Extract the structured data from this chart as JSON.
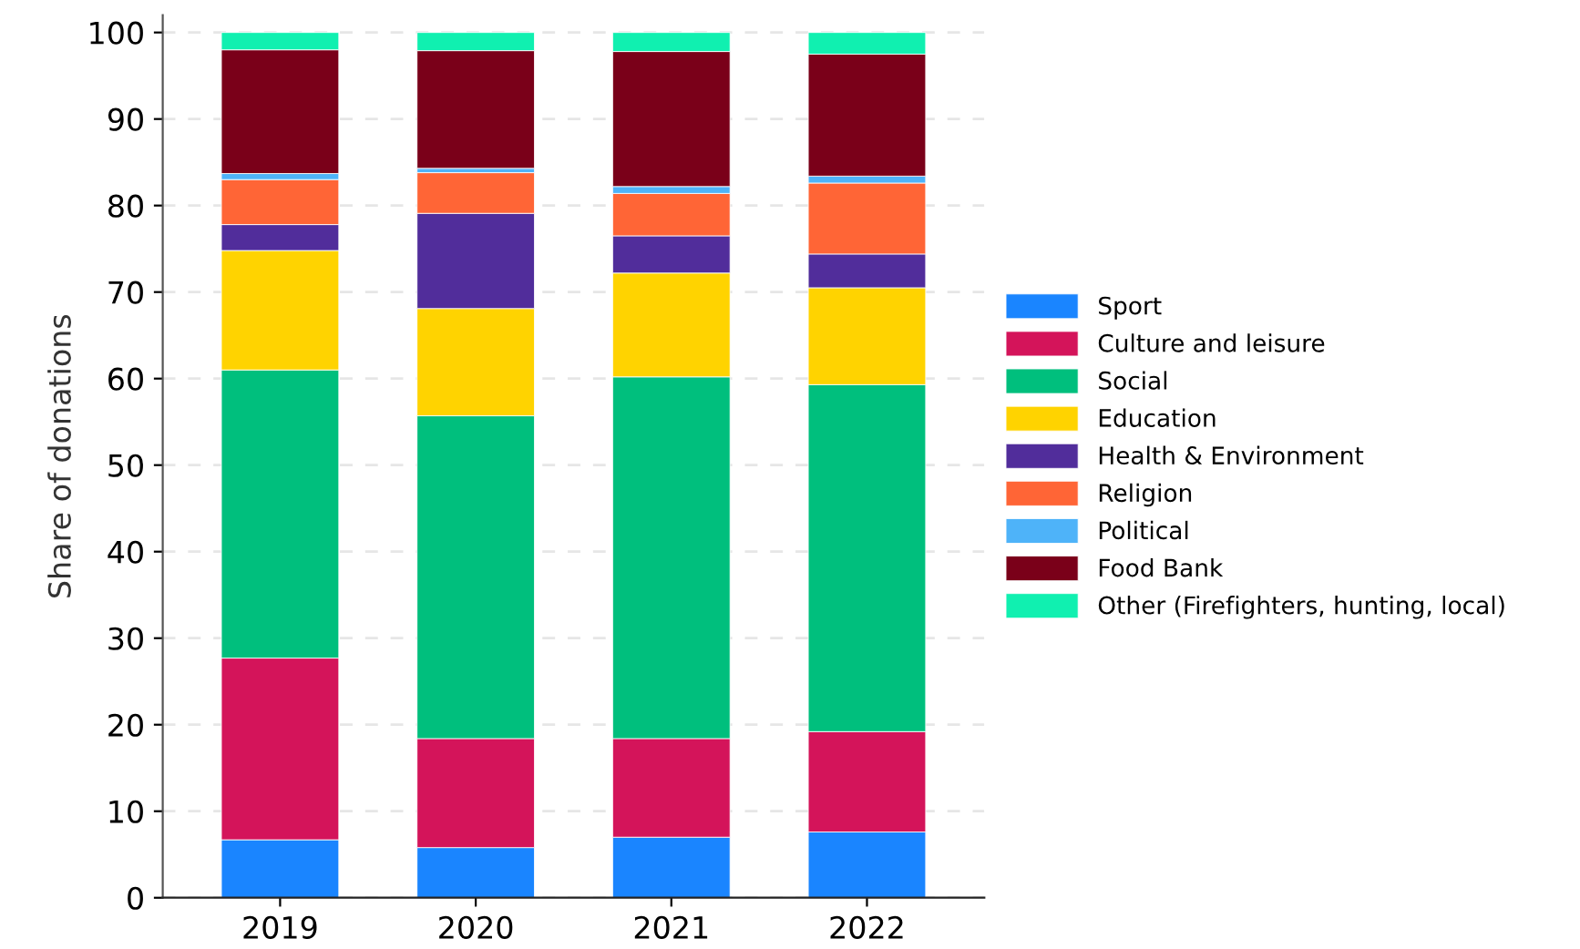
{
  "chart_data": {
    "type": "bar",
    "stacked": true,
    "ylabel": "Share of donations",
    "categories": [
      "2019",
      "2020",
      "2021",
      "2022"
    ],
    "series": [
      {
        "name": "Sport",
        "color": "#1a85ff",
        "values": [
          6.7,
          5.8,
          7.0,
          7.6
        ]
      },
      {
        "name": "Culture and leisure",
        "color": "#d4145a",
        "values": [
          21.0,
          12.6,
          11.4,
          11.6
        ]
      },
      {
        "name": "Social",
        "color": "#00bf7d",
        "values": [
          33.3,
          37.3,
          41.8,
          40.1
        ]
      },
      {
        "name": "Education",
        "color": "#ffd300",
        "values": [
          13.8,
          12.4,
          12.0,
          11.2
        ]
      },
      {
        "name": "Health & Environment",
        "color": "#512d9b",
        "values": [
          3.0,
          11.0,
          4.3,
          3.9
        ]
      },
      {
        "name": "Religion",
        "color": "#ff6536",
        "values": [
          5.2,
          4.7,
          4.9,
          8.2
        ]
      },
      {
        "name": "Political",
        "color": "#4eb3f9",
        "values": [
          0.7,
          0.5,
          0.8,
          0.8
        ]
      },
      {
        "name": "Food Bank",
        "color": "#7a0019",
        "values": [
          14.3,
          13.6,
          15.6,
          14.1
        ]
      },
      {
        "name": "Other (Firefighters, hunting, local)",
        "color": "#10f0b0",
        "values": [
          2.0,
          2.1,
          2.2,
          2.5
        ]
      }
    ],
    "ylim": [
      0,
      102
    ],
    "yticks": [
      0,
      10,
      20,
      30,
      40,
      50,
      60,
      70,
      80,
      90,
      100
    ],
    "grid": "y",
    "legend": "right"
  }
}
